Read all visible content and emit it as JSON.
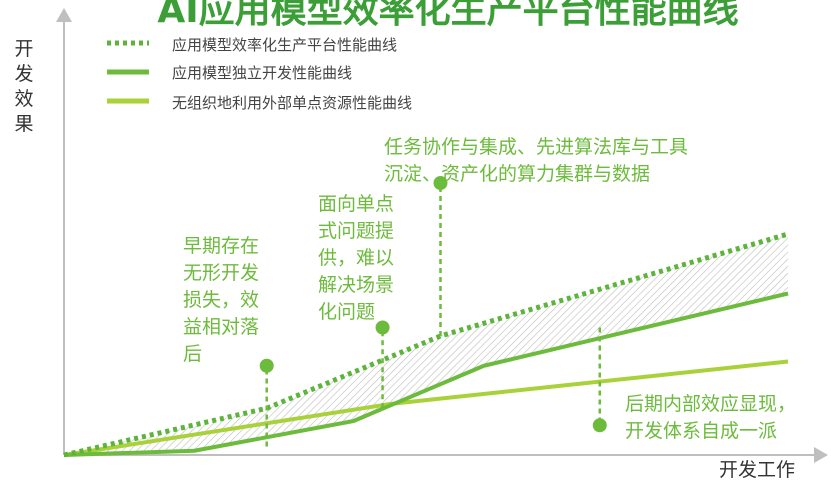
{
  "chart_data": {
    "type": "line",
    "title": "AI应用模型效率化生产平台性能曲线",
    "ylabel": [
      "开",
      "发",
      "效",
      "果"
    ],
    "xlabel": "开发工作",
    "xlim": [
      0,
      100
    ],
    "ylim": [
      0,
      100
    ],
    "grid": false,
    "legend_position": "top-left",
    "colors": {
      "platform": "#5db43a",
      "independent": "#6dbb3c",
      "external": "#a9d13a",
      "annotation": "#6dbb3c",
      "hatch": "#bdbdbd",
      "axis": "#bfbfbf"
    },
    "series": [
      {
        "name": "应用模型效率化生产平台性能曲线",
        "style": "dotted",
        "points": [
          [
            0,
            0
          ],
          [
            28,
            11
          ],
          [
            52,
            28
          ],
          [
            100,
            52
          ]
        ]
      },
      {
        "name": "应用模型独立开发性能曲线",
        "style": "solid",
        "points": [
          [
            0,
            0
          ],
          [
            18,
            1
          ],
          [
            40,
            8
          ],
          [
            58,
            21
          ],
          [
            100,
            38
          ]
        ]
      },
      {
        "name": "无组织地利用外部单点资源性能曲线",
        "style": "solid",
        "points": [
          [
            0,
            0
          ],
          [
            45,
            12
          ],
          [
            100,
            22
          ]
        ]
      }
    ],
    "annotations": [
      {
        "lines": [
          "早期存在",
          "无形开发",
          "损失，效",
          "益相对落",
          "后"
        ],
        "x": 28,
        "y_start": 2,
        "y_end": 21
      },
      {
        "lines": [
          "面向单点",
          "式问题提",
          "供，难以",
          "解决场景",
          "化问题"
        ],
        "x": 44,
        "y_start": 11,
        "y_end": 30
      },
      {
        "lines": [
          "任务协作与集成、先进算法库与工具",
          "沉淀、资产化的算力集群与数据"
        ],
        "x": 52,
        "y_start": 28,
        "y_end": 64
      },
      {
        "lines": [
          "后期内部效应显现，",
          "开发体系自成一派"
        ],
        "x": 74,
        "y_start": 30,
        "y_end": 7
      }
    ]
  }
}
